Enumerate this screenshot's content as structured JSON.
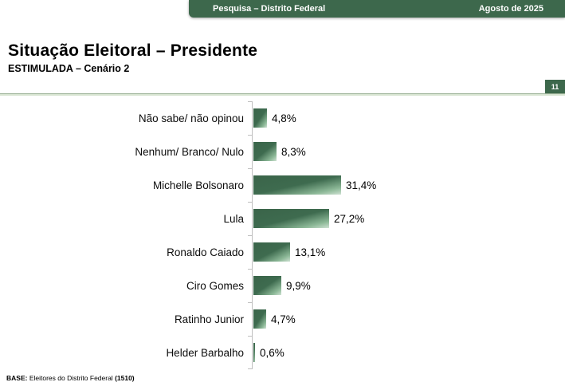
{
  "header": {
    "left_label": "Pesquisa – Distrito Federal",
    "right_label": "Agosto de 2025",
    "bg_color": "#3d684c"
  },
  "title": "Situação Eleitoral – Presidente",
  "subtitle": "ESTIMULADA – Cenário 2",
  "page_number": "11",
  "chart_data": {
    "type": "bar",
    "orientation": "horizontal",
    "title": "Situação Eleitoral – Presidente (ESTIMULADA – Cenário 2)",
    "categories": [
      "Não sabe/ não opinou",
      "Nenhum/ Branco/ Nulo",
      "Michelle Bolsonaro",
      "Lula",
      "Ronaldo Caiado",
      "Ciro Gomes",
      "Ratinho Junior",
      "Helder Barbalho"
    ],
    "values": [
      4.8,
      8.3,
      31.4,
      27.2,
      13.1,
      9.9,
      4.7,
      0.6
    ],
    "value_labels": [
      "4,8%",
      "8,3%",
      "31,4%",
      "27,2%",
      "13,1%",
      "9,9%",
      "4,7%",
      "0,6%"
    ],
    "xlim": [
      0,
      35
    ],
    "grid": false,
    "legend": false,
    "bar_color_dark": "#3e6b4f",
    "bar_color_light": "#cfe2d3",
    "axis_color": "#bfbfbf"
  },
  "footer": {
    "bold_prefix": "BASE:",
    "text": " Eleitores do Distrito Federal ",
    "bold_count": "(1510)"
  }
}
